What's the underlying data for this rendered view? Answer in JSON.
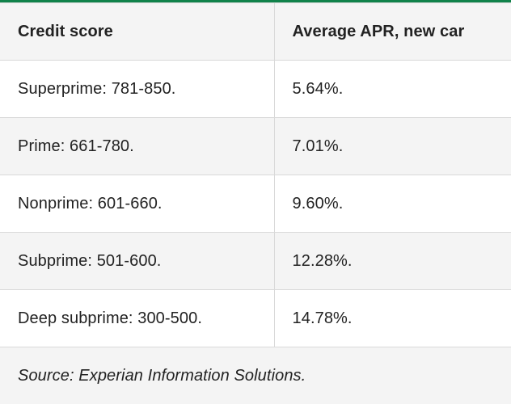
{
  "table": {
    "headers": [
      "Credit score",
      "Average APR, new car"
    ],
    "rows": [
      [
        "Superprime: 781-850.",
        "5.64%."
      ],
      [
        "Prime: 661-780.",
        "7.01%."
      ],
      [
        "Nonprime: 601-660.",
        "9.60%."
      ],
      [
        "Subprime: 501-600.",
        "12.28%."
      ],
      [
        "Deep subprime: 300-500.",
        "14.78%."
      ]
    ],
    "source": "Source: Experian Information Solutions."
  },
  "colors": {
    "accent_border": "#10824a",
    "header_bg": "#f4f4f4",
    "stripe_bg": "#f4f4f4",
    "row_bg": "#ffffff"
  }
}
